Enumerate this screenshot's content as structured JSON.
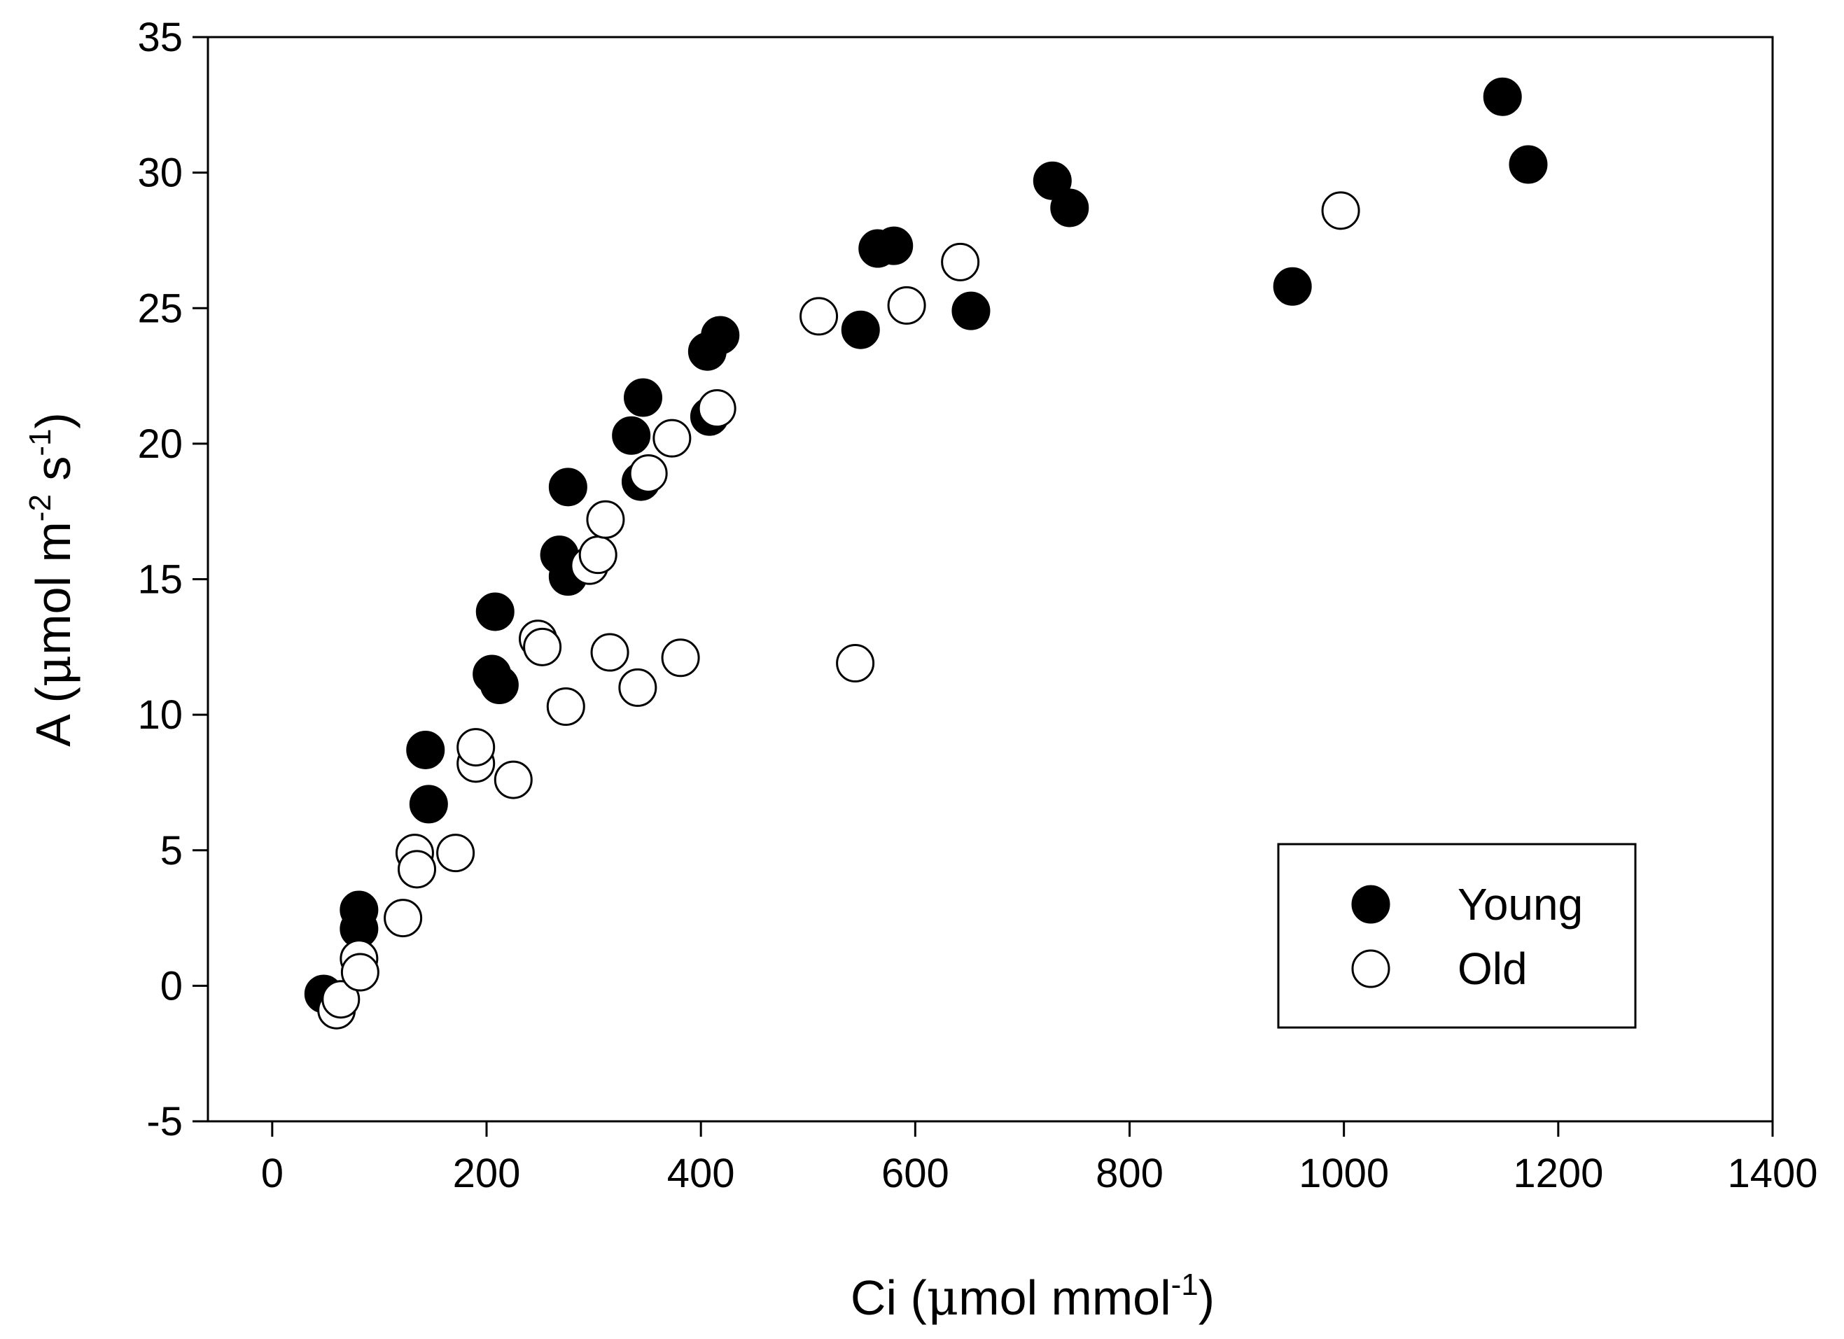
{
  "chart_data": {
    "type": "scatter",
    "title": "",
    "xlabel": {
      "prefix": "Ci (",
      "mu": "μ",
      "unit": "mol mmol",
      "sup": "-1",
      "suffix": ")"
    },
    "ylabel": {
      "prefix": "A (",
      "mu": "μ",
      "unit1": "mol m",
      "sup1": "-2",
      "unit2": " s",
      "sup2": "-1",
      "suffix": ")"
    },
    "xlim": [
      -60,
      1400
    ],
    "ylim": [
      -5,
      35
    ],
    "x_ticks": [
      0,
      200,
      400,
      600,
      800,
      1000,
      1200,
      1400
    ],
    "y_ticks": [
      -5,
      0,
      5,
      10,
      15,
      20,
      25,
      30,
      35
    ],
    "x_tick_labels": [
      "0",
      "200",
      "400",
      "600",
      "800",
      "1000",
      "1200",
      "1400"
    ],
    "y_tick_labels": [
      "-5",
      "0",
      "5",
      "10",
      "15",
      "20",
      "25",
      "30",
      "35"
    ],
    "legend_position": "bottom-right",
    "series": [
      {
        "name": "Young",
        "marker": "filled-circle",
        "color": "#000000",
        "points": [
          [
            48,
            -0.3
          ],
          [
            81,
            2.8
          ],
          [
            81,
            2.1
          ],
          [
            143,
            8.7
          ],
          [
            146,
            6.7
          ],
          [
            205,
            11.5
          ],
          [
            208,
            13.8
          ],
          [
            212,
            11.1
          ],
          [
            268,
            15.9
          ],
          [
            276,
            15.1
          ],
          [
            276,
            18.4
          ],
          [
            335,
            20.3
          ],
          [
            344,
            18.6
          ],
          [
            346,
            21.7
          ],
          [
            406,
            23.4
          ],
          [
            408,
            21.0
          ],
          [
            418,
            24.0
          ],
          [
            549,
            24.2
          ],
          [
            565,
            27.2
          ],
          [
            580,
            27.3
          ],
          [
            652,
            24.9
          ],
          [
            728,
            29.7
          ],
          [
            744,
            28.7
          ],
          [
            952,
            25.8
          ],
          [
            1148,
            32.8
          ],
          [
            1172,
            30.3
          ]
        ]
      },
      {
        "name": "Old",
        "marker": "open-circle",
        "color": "#ffffff",
        "points": [
          [
            60,
            -0.9
          ],
          [
            64,
            -0.5
          ],
          [
            81,
            1.0
          ],
          [
            82,
            0.5
          ],
          [
            122,
            2.5
          ],
          [
            133,
            4.9
          ],
          [
            135,
            4.3
          ],
          [
            171,
            4.9
          ],
          [
            190,
            8.2
          ],
          [
            190,
            8.8
          ],
          [
            225,
            7.6
          ],
          [
            248,
            12.8
          ],
          [
            252,
            12.5
          ],
          [
            274,
            10.3
          ],
          [
            296,
            15.5
          ],
          [
            304,
            15.9
          ],
          [
            311,
            17.2
          ],
          [
            315,
            12.3
          ],
          [
            341,
            11.0
          ],
          [
            351,
            18.9
          ],
          [
            373,
            20.2
          ],
          [
            381,
            12.1
          ],
          [
            415,
            21.3
          ],
          [
            510,
            24.7
          ],
          [
            544,
            11.9
          ],
          [
            592,
            25.1
          ],
          [
            642,
            26.7
          ],
          [
            997,
            28.6
          ]
        ]
      }
    ]
  }
}
